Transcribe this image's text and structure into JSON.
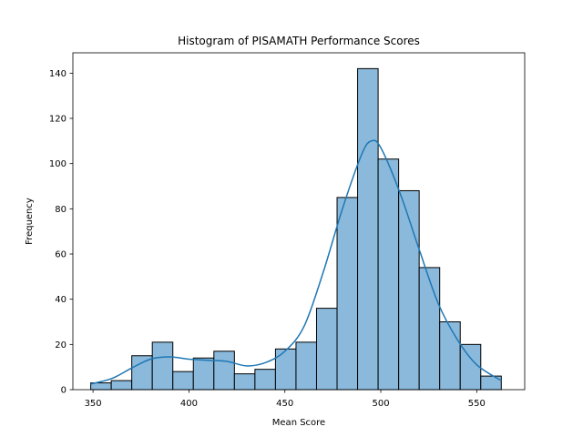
{
  "chart_data": {
    "type": "bar",
    "title": "Histogram of PISAMATH Performance Scores",
    "xlabel": "Mean Score",
    "ylabel": "Frequency",
    "xlim": [
      339.5,
      575
    ],
    "ylim": [
      0,
      149
    ],
    "xticks": [
      350,
      400,
      450,
      500,
      550
    ],
    "yticks": [
      0,
      20,
      40,
      60,
      80,
      100,
      120,
      140
    ],
    "bin_edges": [
      348.8,
      359.5,
      370.2,
      380.9,
      391.6,
      402.3,
      413.0,
      423.7,
      434.4,
      445.1,
      455.8,
      466.5,
      477.2,
      487.9,
      498.6,
      509.3,
      520.0,
      530.7,
      541.4,
      552.1,
      562.8
    ],
    "values": [
      3,
      4,
      15,
      21,
      8,
      14,
      17,
      7,
      9,
      18,
      21,
      36,
      85,
      142,
      102,
      88,
      54,
      30,
      20,
      6
    ],
    "kde": {
      "x": [
        348.8,
        360,
        370,
        380,
        390,
        400,
        410,
        420,
        430,
        440,
        450,
        460,
        470,
        480,
        490,
        495,
        500,
        510,
        520,
        530,
        540,
        550,
        562.8
      ],
      "y": [
        2.5,
        5,
        9.5,
        13.5,
        14.5,
        13.5,
        13,
        12.5,
        10.5,
        12,
        17,
        28,
        52,
        80,
        104,
        110,
        107,
        87,
        62,
        38,
        22,
        11,
        4
      ]
    },
    "bar_color": "#8ab9dc",
    "edge_color": "#000000",
    "kde_color": "#1f77b4",
    "grid": false
  }
}
